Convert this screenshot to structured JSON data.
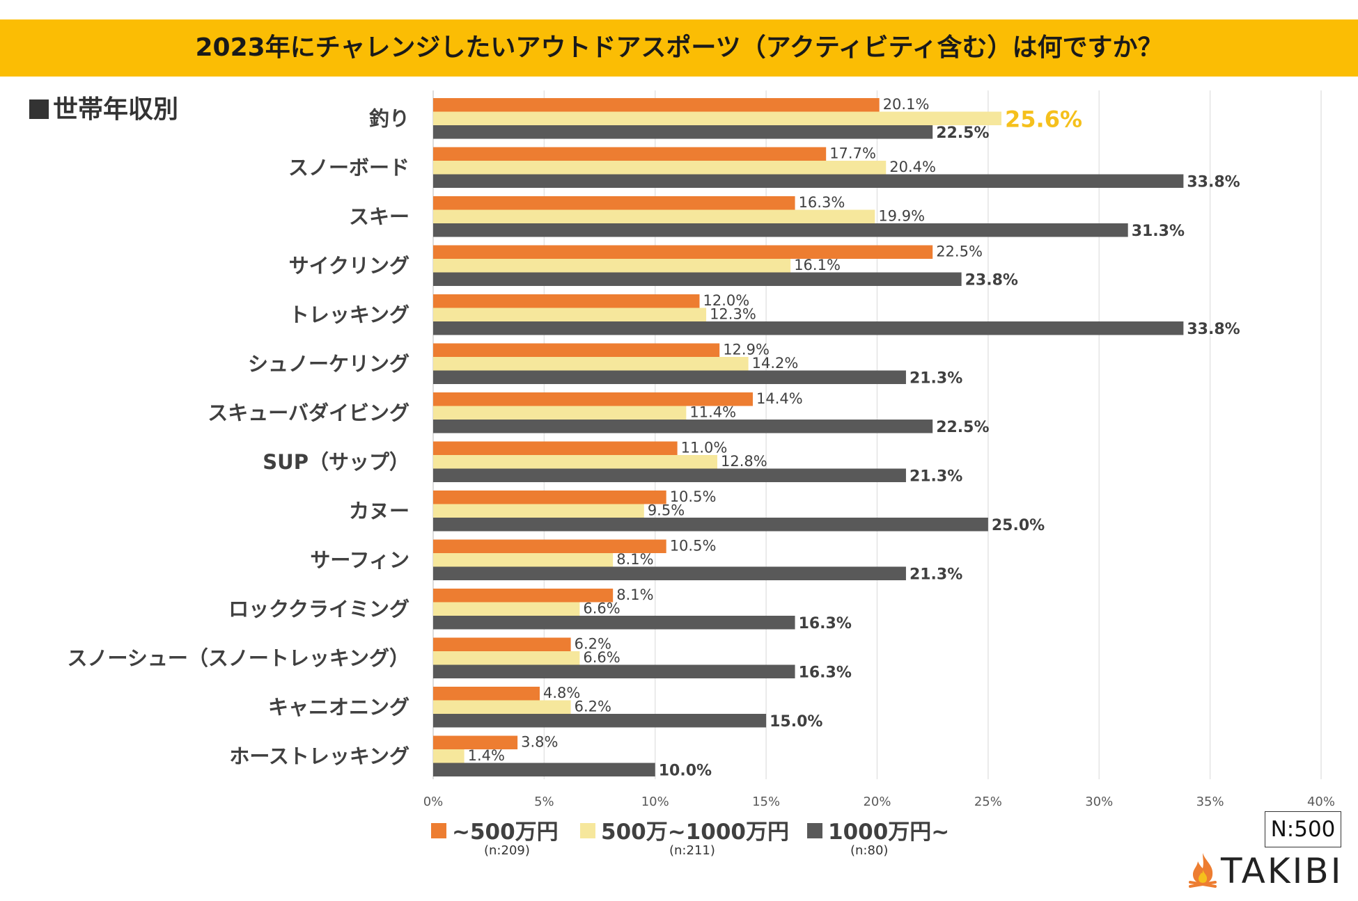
{
  "title": "2023年にチャレンジしたいアウトドアスポーツ（アクティビティ含む）は何ですか？",
  "subtitle": "世帯年収別",
  "sample_size": "N:500",
  "logo_text": "TAKIBI",
  "colors": {
    "title_bg": "#fbbd04",
    "series1": "#ed7d31",
    "series2": "#f6e79c",
    "series3": "#595959",
    "highlight": "#f5c01c",
    "grid": "#e4e4e4"
  },
  "legend": [
    {
      "label": "~500万円",
      "n": "(n:209)",
      "color": "#ed7d31"
    },
    {
      "label": "500万~1000万円",
      "n": "(n:211)",
      "color": "#f6e79c"
    },
    {
      "label": "1000万円~",
      "n": "(n:80)",
      "color": "#595959"
    }
  ],
  "chart_data": {
    "type": "bar",
    "orientation": "horizontal",
    "title": "2023年にチャレンジしたいアウトドアスポーツ（アクティビティ含む）は何ですか？",
    "xlim": [
      0,
      40
    ],
    "x_ticks": [
      "0%",
      "5%",
      "10%",
      "15%",
      "20%",
      "25%",
      "30%",
      "35%",
      "40%"
    ],
    "grid": true,
    "categories": [
      "釣り",
      "スノーボード",
      "スキー",
      "サイクリング",
      "トレッキング",
      "シュノーケリング",
      "スキューバダイビング",
      "SUP（サップ）",
      "カヌー",
      "サーフィン",
      "ロッククライミング",
      "スノーシュー（スノートレッキング）",
      "キャニオニング",
      "ホーストレッキング"
    ],
    "series": [
      {
        "name": "~500万円",
        "values": [
          20.1,
          17.7,
          16.3,
          22.5,
          12.0,
          12.9,
          14.4,
          11.0,
          10.5,
          10.5,
          8.1,
          6.2,
          4.8,
          3.8
        ]
      },
      {
        "name": "500万~1000万円",
        "values": [
          25.6,
          20.4,
          19.9,
          16.1,
          12.3,
          14.2,
          11.4,
          12.8,
          9.5,
          8.1,
          6.6,
          6.6,
          6.2,
          1.4
        ]
      },
      {
        "name": "1000万円~",
        "values": [
          22.5,
          33.8,
          31.3,
          23.8,
          33.8,
          21.3,
          22.5,
          21.3,
          25.0,
          21.3,
          16.3,
          16.3,
          15.0,
          10.0
        ]
      }
    ],
    "highlight": {
      "series": 1,
      "category": 0
    }
  }
}
